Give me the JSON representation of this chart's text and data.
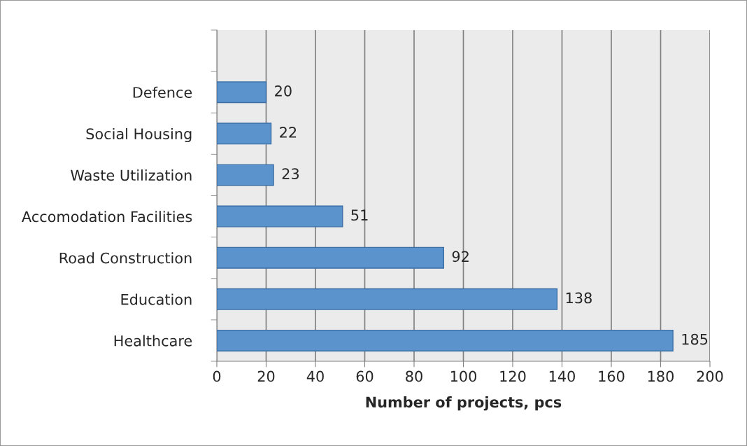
{
  "chart_data": {
    "type": "bar",
    "orientation": "horizontal",
    "xlabel": "Number of projects, pcs",
    "categories": [
      null,
      "Defence",
      "Social Housing",
      "Waste Utilization",
      "Accomodation Facilities",
      "Road Construction",
      "Education",
      "Healthcare"
    ],
    "values": [
      null,
      20,
      22,
      23,
      51,
      92,
      138,
      185
    ],
    "color": "#5b93cc",
    "xlim": [
      0,
      200
    ],
    "xticks": [
      0,
      20,
      40,
      60,
      80,
      100,
      120,
      140,
      160,
      180,
      200
    ],
    "grid": "x",
    "data_labels": true,
    "legend": false
  }
}
